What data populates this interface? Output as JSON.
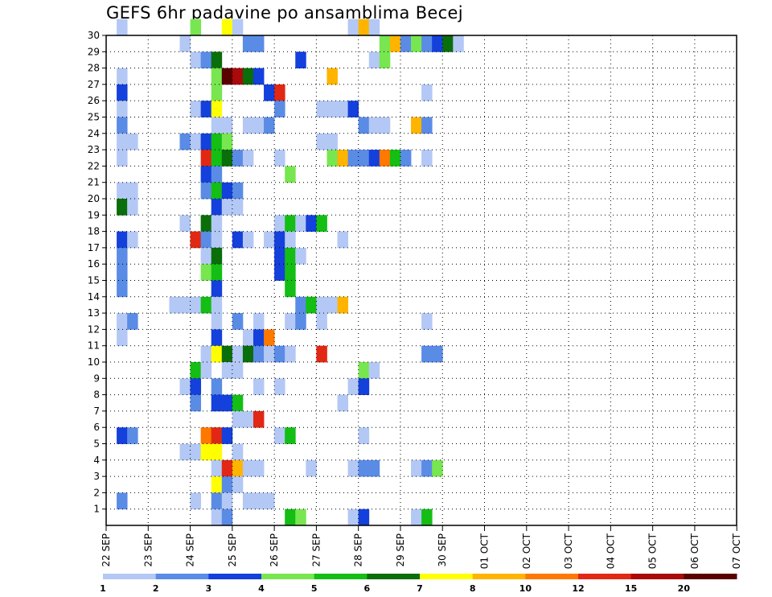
{
  "chart_data": {
    "type": "heatmap",
    "title": "GEFS 6hr padavine po ansamblima Becej",
    "xlabel": "",
    "ylabel": "",
    "x_ticks": [
      "22 SEP",
      "23 SEP",
      "24 SEP",
      "25 SEP",
      "26 SEP",
      "27 SEP",
      "28 SEP",
      "29 SEP",
      "30 SEP",
      "01 OCT",
      "02 OCT",
      "03 OCT",
      "04 OCT",
      "05 OCT",
      "06 OCT",
      "07 OCT"
    ],
    "x_range_steps": [
      0,
      60
    ],
    "y_ticks": [
      1,
      2,
      3,
      4,
      5,
      6,
      7,
      8,
      9,
      10,
      11,
      12,
      13,
      14,
      15,
      16,
      17,
      18,
      19,
      20,
      21,
      22,
      23,
      24,
      25,
      26,
      27,
      28,
      29,
      30
    ],
    "grid": true,
    "legend": {
      "position": "bottom",
      "levels": [
        1,
        2,
        3,
        4,
        5,
        6,
        7,
        8,
        10,
        12,
        15,
        20
      ],
      "colors": [
        "#b4c8f5",
        "#5a8ce6",
        "#1440dc",
        "#78e650",
        "#14be14",
        "#0a6e0a",
        "#ffff00",
        "#ffb400",
        "#ff7800",
        "#e12814",
        "#aa0a0a",
        "#5a0000"
      ]
    },
    "cells": [
      [
        1,
        30,
        0
      ],
      [
        8,
        30,
        3
      ],
      [
        11,
        30,
        6
      ],
      [
        12,
        30,
        0
      ],
      [
        23,
        30,
        0
      ],
      [
        24,
        30,
        7
      ],
      [
        25,
        30,
        0
      ],
      [
        7,
        29,
        0
      ],
      [
        13,
        29,
        1
      ],
      [
        14,
        29,
        1
      ],
      [
        26,
        29,
        3
      ],
      [
        27,
        29,
        7
      ],
      [
        28,
        29,
        1
      ],
      [
        29,
        29,
        3
      ],
      [
        30,
        29,
        1
      ],
      [
        31,
        29,
        2
      ],
      [
        32,
        29,
        5
      ],
      [
        33,
        29,
        0
      ],
      [
        8,
        28,
        0
      ],
      [
        9,
        28,
        1
      ],
      [
        10,
        28,
        5
      ],
      [
        18,
        28,
        2
      ],
      [
        25,
        28,
        0
      ],
      [
        26,
        28,
        3
      ],
      [
        1,
        27,
        0
      ],
      [
        10,
        27,
        3
      ],
      [
        11,
        27,
        11
      ],
      [
        12,
        27,
        10
      ],
      [
        13,
        27,
        5
      ],
      [
        14,
        27,
        2
      ],
      [
        21,
        27,
        7
      ],
      [
        1,
        26,
        2
      ],
      [
        10,
        26,
        3
      ],
      [
        15,
        26,
        2
      ],
      [
        16,
        26,
        9
      ],
      [
        30,
        26,
        0
      ],
      [
        1,
        25,
        0
      ],
      [
        8,
        25,
        0
      ],
      [
        9,
        25,
        2
      ],
      [
        10,
        25,
        6
      ],
      [
        16,
        25,
        1
      ],
      [
        20,
        25,
        0
      ],
      [
        21,
        25,
        0
      ],
      [
        22,
        25,
        0
      ],
      [
        23,
        25,
        2
      ],
      [
        1,
        24,
        1
      ],
      [
        10,
        24,
        0
      ],
      [
        11,
        24,
        0
      ],
      [
        13,
        24,
        0
      ],
      [
        14,
        24,
        0
      ],
      [
        15,
        24,
        1
      ],
      [
        24,
        24,
        1
      ],
      [
        25,
        24,
        0
      ],
      [
        26,
        24,
        0
      ],
      [
        29,
        24,
        7
      ],
      [
        30,
        24,
        1
      ],
      [
        1,
        23,
        0
      ],
      [
        2,
        23,
        0
      ],
      [
        7,
        23,
        1
      ],
      [
        8,
        23,
        0
      ],
      [
        9,
        23,
        2
      ],
      [
        10,
        23,
        4
      ],
      [
        11,
        23,
        3
      ],
      [
        20,
        23,
        0
      ],
      [
        21,
        23,
        0
      ],
      [
        1,
        22,
        0
      ],
      [
        9,
        22,
        9
      ],
      [
        10,
        22,
        4
      ],
      [
        11,
        22,
        5
      ],
      [
        12,
        22,
        1
      ],
      [
        13,
        22,
        0
      ],
      [
        16,
        22,
        0
      ],
      [
        21,
        22,
        3
      ],
      [
        22,
        22,
        7
      ],
      [
        23,
        22,
        1
      ],
      [
        24,
        22,
        1
      ],
      [
        25,
        22,
        2
      ],
      [
        26,
        22,
        8
      ],
      [
        27,
        22,
        4
      ],
      [
        28,
        22,
        1
      ],
      [
        30,
        22,
        0
      ],
      [
        9,
        21,
        2
      ],
      [
        10,
        21,
        1
      ],
      [
        17,
        21,
        3
      ],
      [
        1,
        20,
        0
      ],
      [
        2,
        20,
        0
      ],
      [
        9,
        20,
        1
      ],
      [
        10,
        20,
        4
      ],
      [
        11,
        20,
        2
      ],
      [
        12,
        20,
        1
      ],
      [
        1,
        19,
        5
      ],
      [
        2,
        19,
        0
      ],
      [
        10,
        19,
        2
      ],
      [
        11,
        19,
        0
      ],
      [
        12,
        19,
        0
      ],
      [
        7,
        18,
        0
      ],
      [
        9,
        18,
        5
      ],
      [
        10,
        18,
        0
      ],
      [
        16,
        18,
        0
      ],
      [
        17,
        18,
        4
      ],
      [
        18,
        18,
        0
      ],
      [
        19,
        18,
        2
      ],
      [
        20,
        18,
        4
      ],
      [
        1,
        17,
        2
      ],
      [
        2,
        17,
        0
      ],
      [
        8,
        17,
        9
      ],
      [
        9,
        17,
        1
      ],
      [
        10,
        17,
        0
      ],
      [
        12,
        17,
        2
      ],
      [
        13,
        17,
        0
      ],
      [
        15,
        17,
        0
      ],
      [
        16,
        17,
        2
      ],
      [
        17,
        17,
        0
      ],
      [
        22,
        17,
        0
      ],
      [
        1,
        16,
        1
      ],
      [
        9,
        16,
        0
      ],
      [
        10,
        16,
        5
      ],
      [
        16,
        16,
        2
      ],
      [
        17,
        16,
        4
      ],
      [
        18,
        16,
        0
      ],
      [
        1,
        15,
        1
      ],
      [
        9,
        15,
        3
      ],
      [
        10,
        15,
        4
      ],
      [
        16,
        15,
        2
      ],
      [
        17,
        15,
        4
      ],
      [
        1,
        14,
        1
      ],
      [
        10,
        14,
        2
      ],
      [
        17,
        14,
        4
      ],
      [
        6,
        13,
        0
      ],
      [
        7,
        13,
        0
      ],
      [
        8,
        13,
        0
      ],
      [
        9,
        13,
        4
      ],
      [
        10,
        13,
        0
      ],
      [
        18,
        13,
        1
      ],
      [
        19,
        13,
        4
      ],
      [
        20,
        13,
        0
      ],
      [
        21,
        13,
        0
      ],
      [
        22,
        13,
        7
      ],
      [
        1,
        12,
        0
      ],
      [
        2,
        12,
        1
      ],
      [
        10,
        12,
        0
      ],
      [
        12,
        12,
        1
      ],
      [
        14,
        12,
        0
      ],
      [
        17,
        12,
        0
      ],
      [
        18,
        12,
        1
      ],
      [
        20,
        12,
        0
      ],
      [
        30,
        12,
        0
      ],
      [
        1,
        11,
        0
      ],
      [
        10,
        11,
        2
      ],
      [
        13,
        11,
        0
      ],
      [
        14,
        11,
        2
      ],
      [
        15,
        11,
        8
      ],
      [
        9,
        10,
        0
      ],
      [
        10,
        10,
        6
      ],
      [
        11,
        10,
        5
      ],
      [
        12,
        10,
        0
      ],
      [
        13,
        10,
        5
      ],
      [
        14,
        10,
        1
      ],
      [
        15,
        10,
        0
      ],
      [
        16,
        10,
        1
      ],
      [
        17,
        10,
        0
      ],
      [
        20,
        10,
        9
      ],
      [
        30,
        10,
        1
      ],
      [
        31,
        10,
        1
      ],
      [
        8,
        9,
        4
      ],
      [
        9,
        9,
        0
      ],
      [
        11,
        9,
        0
      ],
      [
        12,
        9,
        0
      ],
      [
        24,
        9,
        3
      ],
      [
        25,
        9,
        0
      ],
      [
        7,
        8,
        0
      ],
      [
        8,
        8,
        2
      ],
      [
        10,
        8,
        1
      ],
      [
        14,
        8,
        0
      ],
      [
        16,
        8,
        0
      ],
      [
        23,
        8,
        0
      ],
      [
        24,
        8,
        2
      ],
      [
        8,
        7,
        1
      ],
      [
        10,
        7,
        2
      ],
      [
        11,
        7,
        2
      ],
      [
        12,
        7,
        4
      ],
      [
        22,
        7,
        0
      ],
      [
        12,
        6,
        0
      ],
      [
        13,
        6,
        0
      ],
      [
        14,
        6,
        9
      ],
      [
        1,
        5,
        2
      ],
      [
        2,
        5,
        1
      ],
      [
        9,
        5,
        8
      ],
      [
        10,
        5,
        9
      ],
      [
        11,
        5,
        2
      ],
      [
        16,
        5,
        0
      ],
      [
        17,
        5,
        4
      ],
      [
        24,
        5,
        0
      ],
      [
        7,
        4,
        0
      ],
      [
        8,
        4,
        0
      ],
      [
        9,
        4,
        6
      ],
      [
        10,
        4,
        6
      ],
      [
        12,
        4,
        0
      ],
      [
        10,
        3,
        0
      ],
      [
        11,
        3,
        9
      ],
      [
        12,
        3,
        7
      ],
      [
        13,
        3,
        0
      ],
      [
        14,
        3,
        0
      ],
      [
        19,
        3,
        0
      ],
      [
        23,
        3,
        0
      ],
      [
        24,
        3,
        1
      ],
      [
        25,
        3,
        1
      ],
      [
        29,
        3,
        0
      ],
      [
        30,
        3,
        1
      ],
      [
        31,
        3,
        3
      ],
      [
        10,
        2,
        6
      ],
      [
        11,
        2,
        1
      ],
      [
        12,
        2,
        0
      ],
      [
        1,
        1,
        1
      ],
      [
        8,
        1,
        0
      ],
      [
        10,
        1,
        1
      ],
      [
        11,
        1,
        0
      ],
      [
        13,
        1,
        0
      ],
      [
        14,
        1,
        0
      ],
      [
        15,
        1,
        0
      ],
      [
        10,
        0,
        0
      ],
      [
        11,
        0,
        1
      ],
      [
        17,
        0,
        4
      ],
      [
        18,
        0,
        3
      ],
      [
        23,
        0,
        0
      ],
      [
        24,
        0,
        2
      ],
      [
        29,
        0,
        0
      ],
      [
        30,
        0,
        4
      ]
    ]
  }
}
